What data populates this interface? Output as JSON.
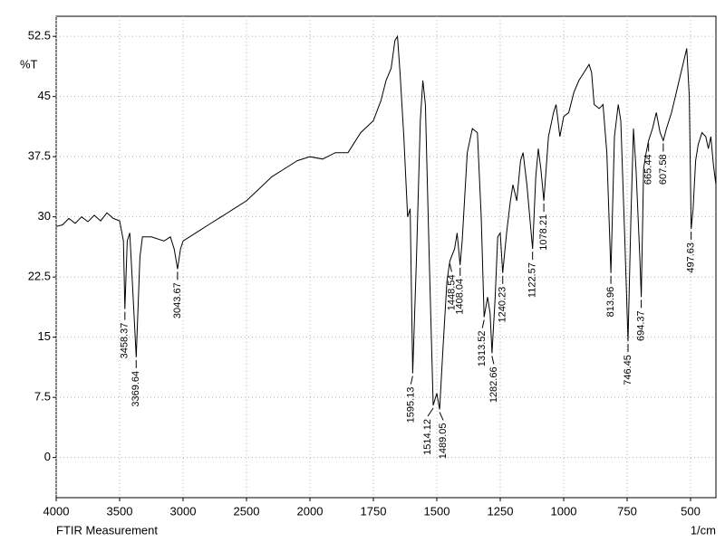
{
  "chart_data": {
    "type": "line",
    "title": "FTIR Measurement",
    "x_label": "1/cm",
    "y_label": "%T",
    "color": "#000000",
    "grid": true,
    "xlim": [
      4000,
      400
    ],
    "xticks": [
      4000,
      3500,
      3000,
      2500,
      2000,
      1750,
      1500,
      1250,
      1000,
      750,
      500
    ],
    "ylim": [
      -5,
      55
    ],
    "yticks": [
      0,
      7.5,
      15,
      22.5,
      30,
      37.5,
      45,
      52.5
    ],
    "x": [
      4000,
      3950,
      3900,
      3850,
      3800,
      3750,
      3700,
      3650,
      3600,
      3550,
      3500,
      3470,
      3458.37,
      3440,
      3420,
      3400,
      3369.64,
      3340,
      3320,
      3250,
      3150,
      3100,
      3070,
      3043.67,
      3020,
      3000,
      2900,
      2800,
      2700,
      2600,
      2500,
      2400,
      2300,
      2200,
      2100,
      2000,
      1950,
      1900,
      1850,
      1800,
      1750,
      1720,
      1700,
      1680,
      1665,
      1655,
      1645,
      1630,
      1615,
      1605,
      1595.13,
      1580,
      1565,
      1555,
      1545,
      1530,
      1514.12,
      1500,
      1489.05,
      1475,
      1460,
      1448.54,
      1430,
      1420,
      1408.04,
      1400,
      1380,
      1360,
      1340,
      1325,
      1313.52,
      1300,
      1290,
      1282.66,
      1270,
      1260,
      1250,
      1240.23,
      1225,
      1210,
      1200,
      1185,
      1170,
      1160,
      1145,
      1122.57,
      1110,
      1100,
      1090,
      1078.21,
      1060,
      1040,
      1030,
      1015,
      1000,
      980,
      960,
      940,
      920,
      900,
      890,
      880,
      860,
      845,
      830,
      813.96,
      800,
      785,
      775,
      760,
      746.45,
      735,
      725,
      715,
      700,
      694.37,
      685,
      675,
      665.44,
      650,
      635,
      620,
      607.58,
      595,
      575,
      560,
      545,
      530,
      515,
      505,
      497.63,
      490,
      480,
      470,
      455,
      440,
      430,
      420,
      410,
      400
    ],
    "values": [
      28.8,
      29,
      29.8,
      29.2,
      30,
      29.4,
      30.2,
      29.5,
      30.5,
      29.8,
      29.5,
      27,
      18.5,
      27,
      28,
      22,
      12.5,
      25,
      27.5,
      27.5,
      27,
      27.5,
      26,
      23.5,
      26,
      27,
      28,
      29,
      30,
      31,
      32,
      33.5,
      35,
      36,
      37,
      37.5,
      37.2,
      38,
      38,
      40.5,
      42,
      44.5,
      47,
      48.5,
      52,
      52.5,
      48,
      40,
      30,
      31,
      10.5,
      25,
      42,
      47,
      44,
      25,
      6.5,
      8,
      6,
      14,
      22,
      24.5,
      26,
      28,
      24,
      27,
      38,
      41,
      40.5,
      30,
      17.5,
      20,
      18,
      13,
      20,
      27.5,
      28,
      23,
      28,
      32,
      34,
      32,
      37,
      38,
      34,
      26,
      35,
      38.5,
      36,
      32,
      40,
      43,
      44,
      40,
      42.5,
      43,
      45.5,
      47,
      48,
      49,
      48,
      44,
      43.5,
      44,
      38,
      23,
      40,
      44,
      42,
      28,
      14.5,
      30,
      41,
      36,
      25,
      20,
      36,
      38,
      39.5,
      41,
      43,
      40.5,
      39.5,
      41,
      43,
      45,
      47,
      49,
      51,
      45,
      28.5,
      31,
      37,
      39,
      40.5,
      40,
      38.5,
      40,
      36.5,
      34
    ],
    "annotations": [
      {
        "x": 3458.37,
        "y": 18.5
      },
      {
        "x": 3369.64,
        "y": 12.5
      },
      {
        "x": 3043.67,
        "y": 23.5
      },
      {
        "x": 1595.13,
        "y": 10.5
      },
      {
        "x": 1514.12,
        "y": 6.5
      },
      {
        "x": 1489.05,
        "y": 6
      },
      {
        "x": 1448.54,
        "y": 24.5
      },
      {
        "x": 1408.04,
        "y": 24
      },
      {
        "x": 1313.52,
        "y": 17.5
      },
      {
        "x": 1282.66,
        "y": 13
      },
      {
        "x": 1240.23,
        "y": 23
      },
      {
        "x": 1122.57,
        "y": 26
      },
      {
        "x": 1078.21,
        "y": 32
      },
      {
        "x": 813.96,
        "y": 23
      },
      {
        "x": 746.45,
        "y": 14.5
      },
      {
        "x": 694.37,
        "y": 20
      },
      {
        "x": 665.44,
        "y": 39.5
      },
      {
        "x": 607.58,
        "y": 39.5
      },
      {
        "x": 497.63,
        "y": 28.5
      }
    ]
  }
}
